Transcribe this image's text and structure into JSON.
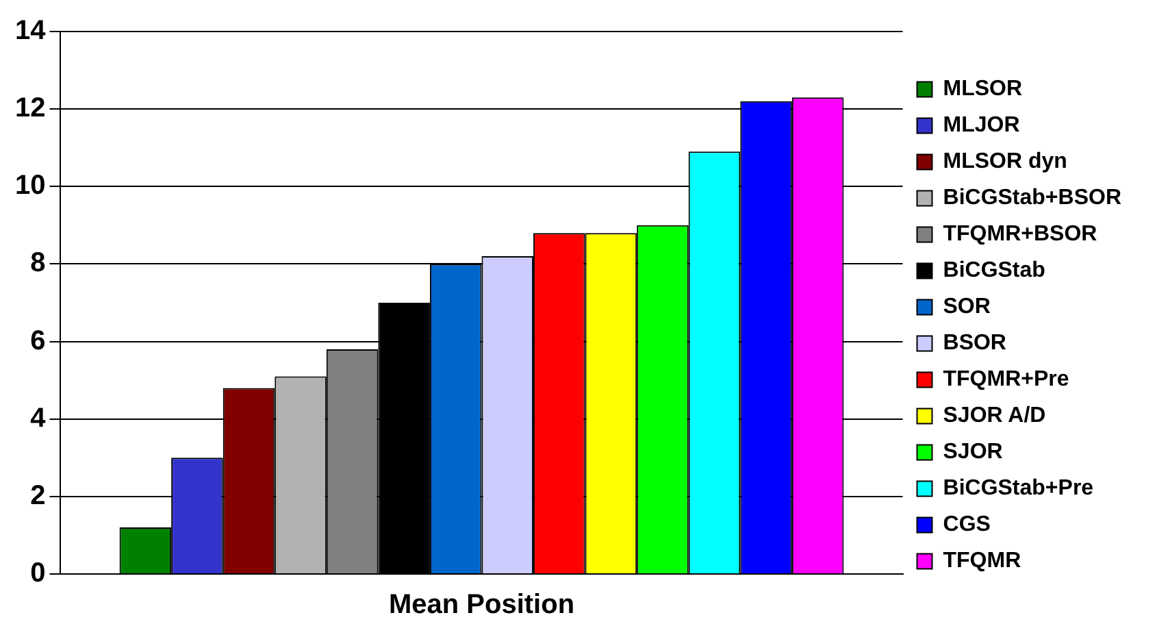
{
  "chart_data": {
    "type": "bar",
    "categories": [
      "Mean Position"
    ],
    "series": [
      {
        "name": "MLSOR",
        "color": "#008000",
        "values": [
          1.2
        ]
      },
      {
        "name": "MLJOR",
        "color": "#3333cc",
        "values": [
          3.0
        ]
      },
      {
        "name": "MLSOR dyn",
        "color": "#800000",
        "values": [
          4.8
        ]
      },
      {
        "name": "BiCGStab+BSOR",
        "color": "#b2b2b2",
        "values": [
          5.1
        ]
      },
      {
        "name": "TFQMR+BSOR",
        "color": "#808080",
        "values": [
          5.8
        ]
      },
      {
        "name": "BiCGStab",
        "color": "#000000",
        "values": [
          7.0
        ]
      },
      {
        "name": "SOR",
        "color": "#0066cc",
        "values": [
          8.0
        ]
      },
      {
        "name": "BSOR",
        "color": "#ccccff",
        "values": [
          8.2
        ]
      },
      {
        "name": "TFQMR+Pre",
        "color": "#ff0000",
        "values": [
          8.8
        ]
      },
      {
        "name": "SJOR A/D",
        "color": "#ffff00",
        "values": [
          8.8
        ]
      },
      {
        "name": "SJOR",
        "color": "#00ff00",
        "values": [
          9.0
        ]
      },
      {
        "name": "BiCGStab+Pre",
        "color": "#00ffff",
        "values": [
          10.9
        ]
      },
      {
        "name": "CGS",
        "color": "#0000ff",
        "values": [
          12.2
        ]
      },
      {
        "name": "TFQMR",
        "color": "#ff00ff",
        "values": [
          12.3
        ]
      }
    ],
    "ylim": [
      0,
      14
    ],
    "yticks": [
      0,
      2,
      4,
      6,
      8,
      10,
      12,
      14
    ],
    "grid": "y",
    "legend": "right"
  }
}
